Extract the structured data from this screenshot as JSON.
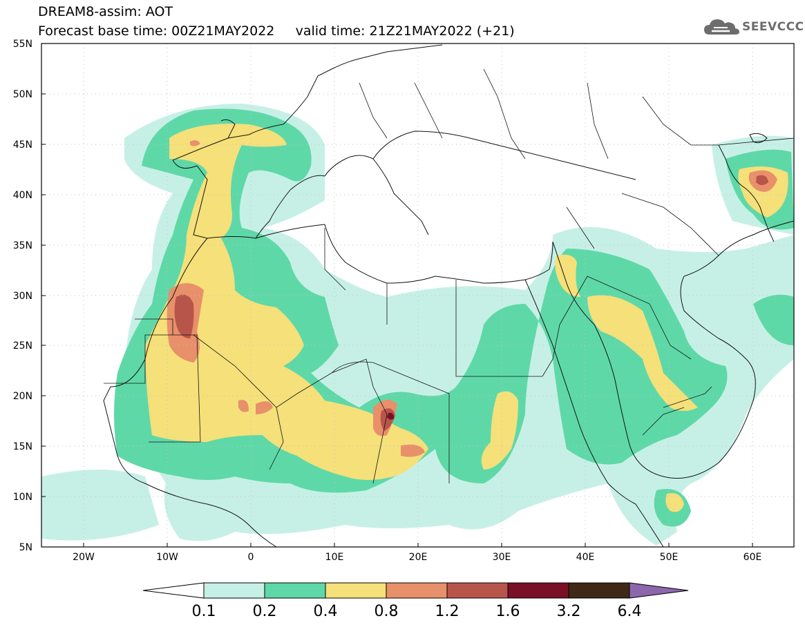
{
  "header": {
    "title_line1": "DREAM8-assim: AOT",
    "title_line2": "Forecast base time: 00Z21MAY2022     valid time: 21Z21MAY2022 (+21)"
  },
  "logo": {
    "text": "SEEVCCC",
    "icon": "cloud-logo-icon"
  },
  "map": {
    "lon_range": [
      -25,
      65
    ],
    "lat_range": [
      5,
      55
    ],
    "lon_ticks": [
      "20W",
      "10W",
      "0",
      "10E",
      "20E",
      "30E",
      "40E",
      "50E",
      "60E"
    ],
    "lat_ticks": [
      "5N",
      "10N",
      "15N",
      "20N",
      "25N",
      "30N",
      "35N",
      "40N",
      "45N",
      "50N",
      "55N"
    ]
  },
  "colorbar": {
    "labels": [
      "0.1",
      "0.2",
      "0.4",
      "0.8",
      "1.2",
      "1.6",
      "3.2",
      "6.4"
    ],
    "colors": [
      "#ffffff",
      "#c6f0e6",
      "#5fd8a8",
      "#f5e07a",
      "#e8906a",
      "#b8554a",
      "#7a1025",
      "#3f2815",
      "#8d67ad"
    ]
  }
}
